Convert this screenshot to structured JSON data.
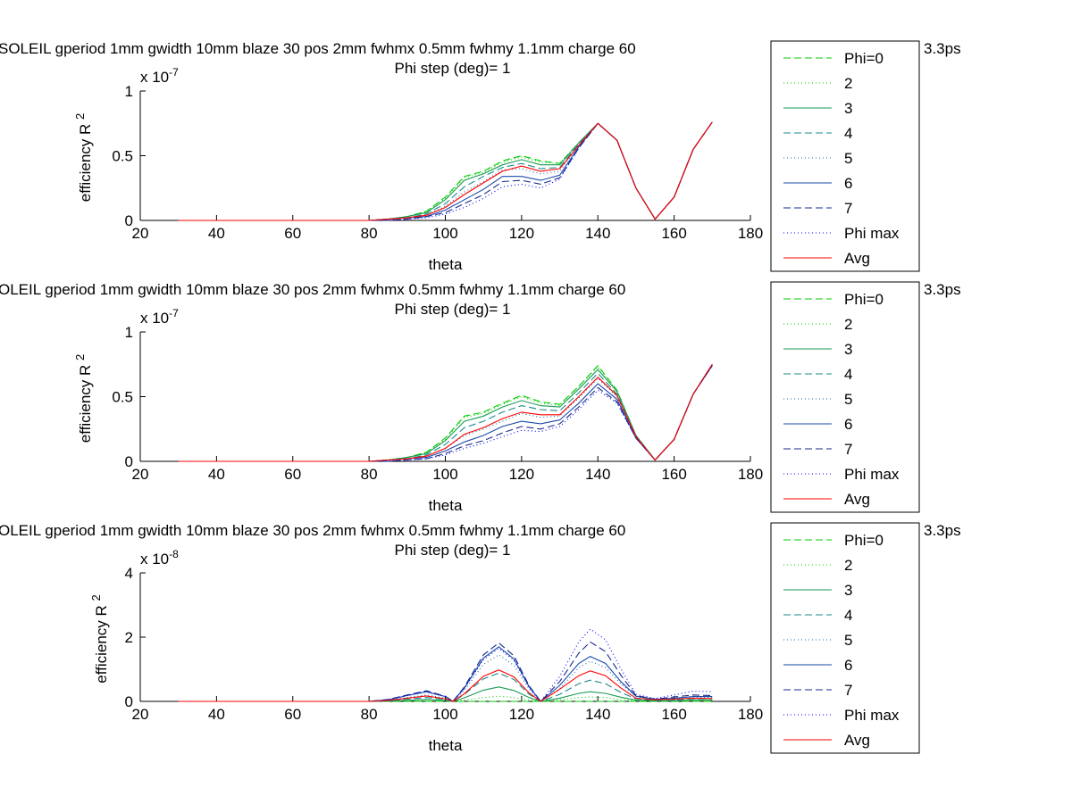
{
  "figure": {
    "background": "#ffffff"
  },
  "chart_data": [
    {
      "type": "line",
      "title": "SOLEIL gperiod 1mm gwidth 10mm blaze 30 pos 2mm fwhmx 0.5mm fwhmy 1.1mm charge 60",
      "title_tail": "3.3ps",
      "subtitle": "Phi step (deg)= 1",
      "xlabel": "theta",
      "ylabel": "efficiency R",
      "ylabel_sup": "2",
      "exponent": "x 10",
      "exponent_sup": "-7",
      "xlim": [
        20,
        180
      ],
      "ylim": [
        0,
        1
      ],
      "xticks": [
        "20",
        "40",
        "60",
        "80",
        "100",
        "120",
        "140",
        "160",
        "180"
      ],
      "yticks": [
        {
          "v": 0,
          "label": "0"
        },
        {
          "v": 0.5,
          "label": "0.5"
        },
        {
          "v": 1,
          "label": "1"
        }
      ],
      "x": [
        30,
        40,
        50,
        60,
        70,
        75,
        80,
        85,
        90,
        95,
        100,
        105,
        110,
        115,
        120,
        125,
        130,
        135,
        140,
        145,
        150,
        155,
        160,
        165,
        170
      ],
      "series": [
        {
          "name": "Phi=0",
          "color": "#00cc00",
          "dash": "8,4",
          "values": [
            0,
            0,
            0,
            0,
            0,
            0,
            0,
            0.01,
            0.03,
            0.07,
            0.18,
            0.34,
            0.38,
            0.46,
            0.5,
            0.46,
            0.44,
            0.6,
            0.75,
            0.62,
            0.25,
            0.01,
            0.18,
            0.55,
            0.76
          ]
        },
        {
          "name": "2",
          "color": "#00cc00",
          "dash": "1,3",
          "values": [
            0,
            0,
            0,
            0,
            0,
            0,
            0,
            0.01,
            0.03,
            0.07,
            0.17,
            0.33,
            0.37,
            0.45,
            0.49,
            0.45,
            0.44,
            0.6,
            0.75,
            0.62,
            0.25,
            0.01,
            0.18,
            0.55,
            0.76
          ]
        },
        {
          "name": "3",
          "color": "#1a9a55",
          "dash": "",
          "values": [
            0,
            0,
            0,
            0,
            0,
            0,
            0,
            0.01,
            0.03,
            0.06,
            0.16,
            0.31,
            0.36,
            0.43,
            0.47,
            0.43,
            0.43,
            0.6,
            0.75,
            0.62,
            0.25,
            0.01,
            0.18,
            0.55,
            0.76
          ]
        },
        {
          "name": "4",
          "color": "#1a8a8a",
          "dash": "8,4",
          "values": [
            0,
            0,
            0,
            0,
            0,
            0,
            0,
            0.01,
            0.02,
            0.05,
            0.13,
            0.26,
            0.34,
            0.41,
            0.44,
            0.4,
            0.41,
            0.59,
            0.75,
            0.62,
            0.25,
            0.01,
            0.18,
            0.55,
            0.76
          ]
        },
        {
          "name": "5",
          "color": "#1a6aaa",
          "dash": "1,3",
          "values": [
            0,
            0,
            0,
            0,
            0,
            0,
            0,
            0.01,
            0.02,
            0.04,
            0.11,
            0.22,
            0.3,
            0.39,
            0.4,
            0.36,
            0.38,
            0.58,
            0.75,
            0.62,
            0.25,
            0.01,
            0.18,
            0.55,
            0.76
          ]
        },
        {
          "name": "6",
          "color": "#1a4aaa",
          "dash": "",
          "values": [
            0,
            0,
            0,
            0,
            0,
            0,
            0,
            0.01,
            0.02,
            0.03,
            0.08,
            0.16,
            0.24,
            0.34,
            0.34,
            0.31,
            0.35,
            0.57,
            0.75,
            0.62,
            0.25,
            0.01,
            0.18,
            0.55,
            0.76
          ]
        },
        {
          "name": "7",
          "color": "#1a2a88",
          "dash": "8,4",
          "values": [
            0,
            0,
            0,
            0,
            0,
            0,
            0,
            0,
            0.01,
            0.03,
            0.06,
            0.13,
            0.2,
            0.3,
            0.31,
            0.28,
            0.33,
            0.56,
            0.75,
            0.62,
            0.25,
            0.01,
            0.18,
            0.55,
            0.76
          ]
        },
        {
          "name": "Phi max",
          "color": "#0000ff",
          "dash": "1,3",
          "values": [
            0,
            0,
            0,
            0,
            0,
            0,
            0,
            0,
            0.01,
            0.02,
            0.05,
            0.1,
            0.17,
            0.26,
            0.28,
            0.25,
            0.32,
            0.56,
            0.75,
            0.62,
            0.25,
            0.01,
            0.18,
            0.55,
            0.76
          ]
        },
        {
          "name": "Avg",
          "color": "#ff0000",
          "dash": "",
          "values": [
            0,
            0,
            0,
            0,
            0,
            0,
            0,
            0.01,
            0.02,
            0.04,
            0.1,
            0.2,
            0.29,
            0.38,
            0.42,
            0.38,
            0.4,
            0.58,
            0.75,
            0.62,
            0.25,
            0.01,
            0.18,
            0.55,
            0.76
          ]
        }
      ]
    },
    {
      "type": "line",
      "title": "OLEIL gperiod 1mm gwidth 10mm blaze 30 pos 2mm fwhmx 0.5mm fwhmy 1.1mm charge 60",
      "title_tail": "3.3ps",
      "subtitle": "Phi step (deg)= 1",
      "xlabel": "theta",
      "ylabel": "efficiency R",
      "ylabel_sup": "2",
      "exponent": "x 10",
      "exponent_sup": "-7",
      "xlim": [
        20,
        180
      ],
      "ylim": [
        0,
        1
      ],
      "xticks": [
        "20",
        "40",
        "60",
        "80",
        "100",
        "120",
        "140",
        "160",
        "180"
      ],
      "yticks": [
        {
          "v": 0,
          "label": "0"
        },
        {
          "v": 0.5,
          "label": "0.5"
        },
        {
          "v": 1,
          "label": "1"
        }
      ],
      "x": [
        30,
        40,
        50,
        60,
        70,
        75,
        80,
        85,
        90,
        95,
        100,
        105,
        110,
        115,
        120,
        125,
        130,
        135,
        140,
        145,
        150,
        155,
        160,
        165,
        170
      ],
      "series": [
        {
          "name": "Phi=0",
          "color": "#00cc00",
          "dash": "8,4",
          "values": [
            0,
            0,
            0,
            0,
            0,
            0,
            0,
            0.01,
            0.03,
            0.07,
            0.18,
            0.35,
            0.38,
            0.45,
            0.51,
            0.46,
            0.44,
            0.58,
            0.74,
            0.55,
            0.2,
            0.01,
            0.17,
            0.52,
            0.75
          ]
        },
        {
          "name": "2",
          "color": "#00cc00",
          "dash": "1,3",
          "values": [
            0,
            0,
            0,
            0,
            0,
            0,
            0,
            0.01,
            0.03,
            0.07,
            0.17,
            0.34,
            0.37,
            0.44,
            0.5,
            0.45,
            0.43,
            0.58,
            0.73,
            0.55,
            0.2,
            0.01,
            0.17,
            0.52,
            0.75
          ]
        },
        {
          "name": "3",
          "color": "#1a9a55",
          "dash": "",
          "values": [
            0,
            0,
            0,
            0,
            0,
            0,
            0,
            0.01,
            0.03,
            0.06,
            0.16,
            0.31,
            0.35,
            0.42,
            0.47,
            0.43,
            0.42,
            0.56,
            0.71,
            0.54,
            0.2,
            0.01,
            0.17,
            0.52,
            0.75
          ]
        },
        {
          "name": "4",
          "color": "#1a8a8a",
          "dash": "8,4",
          "values": [
            0,
            0,
            0,
            0,
            0,
            0,
            0,
            0.01,
            0.02,
            0.05,
            0.13,
            0.26,
            0.31,
            0.38,
            0.43,
            0.4,
            0.39,
            0.53,
            0.68,
            0.52,
            0.19,
            0.01,
            0.17,
            0.52,
            0.75
          ]
        },
        {
          "name": "5",
          "color": "#1a6aaa",
          "dash": "1,3",
          "values": [
            0,
            0,
            0,
            0,
            0,
            0,
            0,
            0.01,
            0.02,
            0.04,
            0.1,
            0.2,
            0.25,
            0.31,
            0.37,
            0.34,
            0.35,
            0.49,
            0.64,
            0.5,
            0.19,
            0.01,
            0.17,
            0.52,
            0.74
          ]
        },
        {
          "name": "6",
          "color": "#1a4aaa",
          "dash": "",
          "values": [
            0,
            0,
            0,
            0,
            0,
            0,
            0,
            0.01,
            0.02,
            0.03,
            0.08,
            0.15,
            0.2,
            0.27,
            0.31,
            0.29,
            0.32,
            0.45,
            0.6,
            0.48,
            0.18,
            0.01,
            0.17,
            0.52,
            0.74
          ]
        },
        {
          "name": "7",
          "color": "#1a2a88",
          "dash": "8,4",
          "values": [
            0,
            0,
            0,
            0,
            0,
            0,
            0,
            0,
            0.01,
            0.02,
            0.06,
            0.12,
            0.16,
            0.22,
            0.27,
            0.25,
            0.29,
            0.42,
            0.57,
            0.46,
            0.18,
            0.01,
            0.17,
            0.52,
            0.74
          ]
        },
        {
          "name": "Phi max",
          "color": "#0000ff",
          "dash": "1,3",
          "values": [
            0,
            0,
            0,
            0,
            0,
            0,
            0,
            0,
            0.01,
            0.02,
            0.05,
            0.1,
            0.14,
            0.19,
            0.24,
            0.23,
            0.27,
            0.4,
            0.55,
            0.45,
            0.18,
            0.01,
            0.17,
            0.52,
            0.74
          ]
        },
        {
          "name": "Avg",
          "color": "#ff0000",
          "dash": "",
          "values": [
            0,
            0,
            0,
            0,
            0,
            0,
            0,
            0.01,
            0.02,
            0.04,
            0.1,
            0.21,
            0.26,
            0.33,
            0.38,
            0.36,
            0.36,
            0.5,
            0.65,
            0.51,
            0.19,
            0.01,
            0.17,
            0.52,
            0.75
          ]
        }
      ]
    },
    {
      "type": "line",
      "title": "OLEIL gperiod 1mm gwidth 10mm blaze 30 pos 2mm fwhmx 0.5mm fwhmy 1.1mm charge 60",
      "title_tail": "3.3ps",
      "subtitle": "Phi step (deg)= 1",
      "xlabel": "theta",
      "ylabel": "efficiency R",
      "ylabel_sup": "2",
      "exponent": "x 10",
      "exponent_sup": "-8",
      "xlim": [
        20,
        180
      ],
      "ylim": [
        0,
        4
      ],
      "xticks": [
        "20",
        "40",
        "60",
        "80",
        "100",
        "120",
        "140",
        "160",
        "180"
      ],
      "yticks": [
        {
          "v": 0,
          "label": "0"
        },
        {
          "v": 2,
          "label": "2"
        },
        {
          "v": 4,
          "label": "4"
        }
      ],
      "x": [
        30,
        40,
        50,
        60,
        70,
        80,
        85,
        90,
        95,
        100,
        102,
        105,
        110,
        114,
        118,
        122,
        125,
        130,
        135,
        138,
        142,
        146,
        150,
        155,
        160,
        165,
        170
      ],
      "series": [
        {
          "name": "Phi=0",
          "color": "#00cc00",
          "dash": "8,4",
          "values": [
            0,
            0,
            0,
            0,
            0,
            0,
            0,
            0,
            0,
            0,
            0,
            0,
            0,
            0,
            0,
            0,
            0,
            0,
            0,
            0,
            0,
            0,
            0,
            0,
            0,
            0,
            0
          ]
        },
        {
          "name": "2",
          "color": "#00cc00",
          "dash": "1,3",
          "values": [
            0,
            0,
            0,
            0,
            0,
            0,
            0,
            0.01,
            0.02,
            0.01,
            0,
            0.04,
            0.12,
            0.16,
            0.12,
            0.04,
            0,
            0.05,
            0.12,
            0.14,
            0.12,
            0.06,
            0.02,
            0.01,
            0.01,
            0.02,
            0.02
          ]
        },
        {
          "name": "3",
          "color": "#1a9a55",
          "dash": "",
          "values": [
            0,
            0,
            0,
            0,
            0,
            0,
            0.01,
            0.03,
            0.06,
            0.03,
            0,
            0.11,
            0.35,
            0.45,
            0.34,
            0.12,
            0,
            0.1,
            0.25,
            0.3,
            0.25,
            0.13,
            0.04,
            0.02,
            0.02,
            0.04,
            0.04
          ]
        },
        {
          "name": "4",
          "color": "#1a8a8a",
          "dash": "8,4",
          "values": [
            0,
            0,
            0,
            0,
            0,
            0,
            0.02,
            0.07,
            0.12,
            0.06,
            0,
            0.22,
            0.7,
            0.88,
            0.68,
            0.22,
            0,
            0.22,
            0.55,
            0.66,
            0.55,
            0.28,
            0.08,
            0.04,
            0.05,
            0.08,
            0.08
          ]
        },
        {
          "name": "5",
          "color": "#1a6aaa",
          "dash": "1,3",
          "values": [
            0,
            0,
            0,
            0,
            0,
            0,
            0.03,
            0.12,
            0.2,
            0.1,
            0,
            0.35,
            1.15,
            1.45,
            1.12,
            0.38,
            0,
            0.4,
            1.05,
            1.25,
            1.05,
            0.55,
            0.15,
            0.06,
            0.08,
            0.12,
            0.12
          ]
        },
        {
          "name": "6",
          "color": "#1a4aaa",
          "dash": "",
          "values": [
            0,
            0,
            0,
            0,
            0,
            0,
            0.05,
            0.18,
            0.3,
            0.15,
            0,
            0.42,
            1.35,
            1.7,
            1.32,
            0.45,
            0,
            0.5,
            1.18,
            1.4,
            1.18,
            0.62,
            0.16,
            0.07,
            0.1,
            0.15,
            0.15
          ]
        },
        {
          "name": "7",
          "color": "#1a2a88",
          "dash": "8,4",
          "values": [
            0,
            0,
            0,
            0,
            0,
            0,
            0.06,
            0.2,
            0.33,
            0.16,
            0,
            0.45,
            1.45,
            1.82,
            1.42,
            0.48,
            0,
            0.62,
            1.5,
            1.85,
            1.55,
            0.82,
            0.18,
            0.07,
            0.14,
            0.2,
            0.18
          ]
        },
        {
          "name": "Phi max",
          "color": "#0000ff",
          "dash": "1,3",
          "values": [
            0,
            0,
            0,
            0,
            0,
            0,
            0.05,
            0.18,
            0.3,
            0.15,
            0,
            0.4,
            1.3,
            1.65,
            1.28,
            0.44,
            0,
            0.78,
            1.85,
            2.25,
            1.92,
            1.02,
            0.22,
            0.09,
            0.2,
            0.32,
            0.3
          ]
        },
        {
          "name": "Avg",
          "color": "#ff0000",
          "dash": "",
          "values": [
            0,
            0,
            0,
            0,
            0,
            0,
            0.03,
            0.1,
            0.17,
            0.08,
            0,
            0.24,
            0.78,
            0.98,
            0.76,
            0.26,
            0,
            0.38,
            0.8,
            0.95,
            0.8,
            0.42,
            0.1,
            0.05,
            0.07,
            0.1,
            0.09
          ]
        }
      ]
    }
  ]
}
